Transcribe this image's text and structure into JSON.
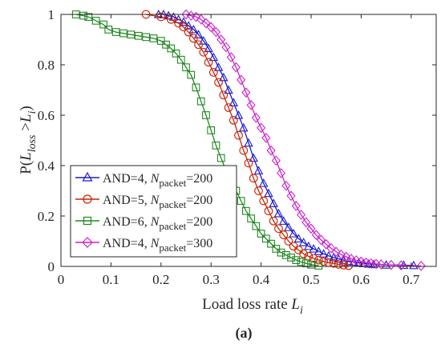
{
  "chart_data": {
    "type": "line",
    "xlabel": "Load loss rate L_i",
    "xlabel_parts": {
      "main": "Load loss rate ",
      "var": "L",
      "sub": "i"
    },
    "ylabel_parts": {
      "pre": "P(",
      "var1": "L",
      "sub1": "loss",
      "gt": " >",
      "var2": "L",
      "sub2": "i",
      "post": ")"
    },
    "xlim": [
      0,
      0.75
    ],
    "ylim": [
      0,
      1
    ],
    "xticks": [
      "0",
      "0.1",
      "0.2",
      "0.3",
      "0.4",
      "0.5",
      "0.6",
      "0.7"
    ],
    "xtick_values": [
      0,
      0.1,
      0.2,
      0.3,
      0.4,
      0.5,
      0.6,
      0.7
    ],
    "yticks": [
      "0",
      "0.2",
      "0.4",
      "0.6",
      "0.8",
      "1"
    ],
    "ytick_values": [
      0,
      0.2,
      0.4,
      0.6,
      0.8,
      1.0
    ],
    "grid": false,
    "legend_position": "bottom-left",
    "series": [
      {
        "name": "AND=4, N_packet=200",
        "legend": {
          "pre": "AND=4, ",
          "var": "N",
          "sub": "packet",
          "post": "=200"
        },
        "color": "#1a1acc",
        "marker": "triangle",
        "x": [
          0.195,
          0.205,
          0.215,
          0.225,
          0.235,
          0.245,
          0.255,
          0.265,
          0.275,
          0.285,
          0.295,
          0.305,
          0.315,
          0.325,
          0.335,
          0.345,
          0.355,
          0.365,
          0.375,
          0.385,
          0.395,
          0.405,
          0.415,
          0.425,
          0.435,
          0.445,
          0.455,
          0.465,
          0.475,
          0.485,
          0.495,
          0.505,
          0.515,
          0.525,
          0.535,
          0.545,
          0.555,
          0.565,
          0.575,
          0.585,
          0.595,
          0.605,
          0.615,
          0.625,
          0.65,
          0.685,
          0.705
        ],
        "y": [
          1.0,
          1.0,
          0.995,
          0.99,
          0.98,
          0.97,
          0.955,
          0.94,
          0.92,
          0.895,
          0.865,
          0.83,
          0.79,
          0.75,
          0.7,
          0.65,
          0.6,
          0.55,
          0.49,
          0.43,
          0.38,
          0.33,
          0.29,
          0.25,
          0.21,
          0.18,
          0.155,
          0.13,
          0.11,
          0.095,
          0.08,
          0.07,
          0.06,
          0.05,
          0.042,
          0.035,
          0.03,
          0.025,
          0.02,
          0.018,
          0.015,
          0.012,
          0.01,
          0.008,
          0.006,
          0.005,
          0.004
        ]
      },
      {
        "name": "AND=5, N_packet=200",
        "legend": {
          "pre": "AND=5, ",
          "var": "N",
          "sub": "packet",
          "post": "=200"
        },
        "color": "#cc2200",
        "marker": "circle",
        "x": [
          0.17,
          0.2,
          0.22,
          0.235,
          0.245,
          0.255,
          0.265,
          0.275,
          0.285,
          0.295,
          0.305,
          0.315,
          0.325,
          0.335,
          0.345,
          0.355,
          0.365,
          0.375,
          0.385,
          0.395,
          0.405,
          0.415,
          0.425,
          0.435,
          0.445,
          0.455,
          0.465,
          0.475,
          0.485,
          0.495,
          0.505,
          0.515,
          0.525,
          0.535,
          0.545,
          0.555,
          0.565,
          0.575
        ],
        "y": [
          1.0,
          0.99,
          0.98,
          0.965,
          0.95,
          0.93,
          0.905,
          0.88,
          0.85,
          0.81,
          0.77,
          0.73,
          0.68,
          0.63,
          0.58,
          0.52,
          0.46,
          0.41,
          0.35,
          0.3,
          0.26,
          0.22,
          0.18,
          0.15,
          0.125,
          0.1,
          0.08,
          0.065,
          0.05,
          0.04,
          0.032,
          0.025,
          0.02,
          0.015,
          0.012,
          0.008,
          0.005,
          0.003
        ]
      },
      {
        "name": "AND=6, N_packet=200",
        "legend": {
          "pre": "AND=6, ",
          "var": "N",
          "sub": "packet",
          "post": "=200"
        },
        "color": "#228822",
        "marker": "square",
        "x": [
          0.03,
          0.045,
          0.055,
          0.07,
          0.085,
          0.095,
          0.11,
          0.125,
          0.14,
          0.155,
          0.17,
          0.185,
          0.2,
          0.21,
          0.22,
          0.23,
          0.24,
          0.25,
          0.26,
          0.27,
          0.28,
          0.29,
          0.3,
          0.31,
          0.32,
          0.33,
          0.34,
          0.35,
          0.36,
          0.37,
          0.38,
          0.39,
          0.4,
          0.41,
          0.42,
          0.43,
          0.44,
          0.45,
          0.46,
          0.47,
          0.48,
          0.49,
          0.5,
          0.515
        ],
        "y": [
          1.0,
          0.995,
          0.99,
          0.975,
          0.96,
          0.94,
          0.93,
          0.925,
          0.92,
          0.915,
          0.91,
          0.905,
          0.895,
          0.88,
          0.865,
          0.845,
          0.82,
          0.79,
          0.76,
          0.71,
          0.655,
          0.6,
          0.54,
          0.48,
          0.43,
          0.38,
          0.34,
          0.3,
          0.26,
          0.22,
          0.19,
          0.16,
          0.13,
          0.11,
          0.09,
          0.07,
          0.055,
          0.045,
          0.035,
          0.025,
          0.018,
          0.012,
          0.007,
          0.003
        ]
      },
      {
        "name": "AND=4, N_packet=300",
        "legend": {
          "pre": "AND=4, ",
          "var": "N",
          "sub": "packet",
          "post": "=300"
        },
        "color": "#cc22cc",
        "marker": "diamond",
        "x": [
          0.25,
          0.26,
          0.27,
          0.28,
          0.29,
          0.3,
          0.31,
          0.32,
          0.33,
          0.34,
          0.35,
          0.36,
          0.37,
          0.38,
          0.39,
          0.4,
          0.41,
          0.42,
          0.43,
          0.44,
          0.45,
          0.46,
          0.47,
          0.48,
          0.49,
          0.5,
          0.51,
          0.52,
          0.53,
          0.54,
          0.55,
          0.56,
          0.57,
          0.58,
          0.59,
          0.6,
          0.61,
          0.62,
          0.63,
          0.64,
          0.66,
          0.68,
          0.72
        ],
        "y": [
          1.0,
          0.995,
          0.99,
          0.98,
          0.965,
          0.95,
          0.93,
          0.9,
          0.87,
          0.83,
          0.79,
          0.74,
          0.69,
          0.64,
          0.59,
          0.55,
          0.51,
          0.46,
          0.42,
          0.37,
          0.32,
          0.28,
          0.24,
          0.205,
          0.175,
          0.15,
          0.125,
          0.105,
          0.088,
          0.072,
          0.058,
          0.047,
          0.038,
          0.03,
          0.024,
          0.019,
          0.015,
          0.012,
          0.01,
          0.008,
          0.006,
          0.004,
          0.002
        ]
      }
    ]
  },
  "caption": "(a)"
}
